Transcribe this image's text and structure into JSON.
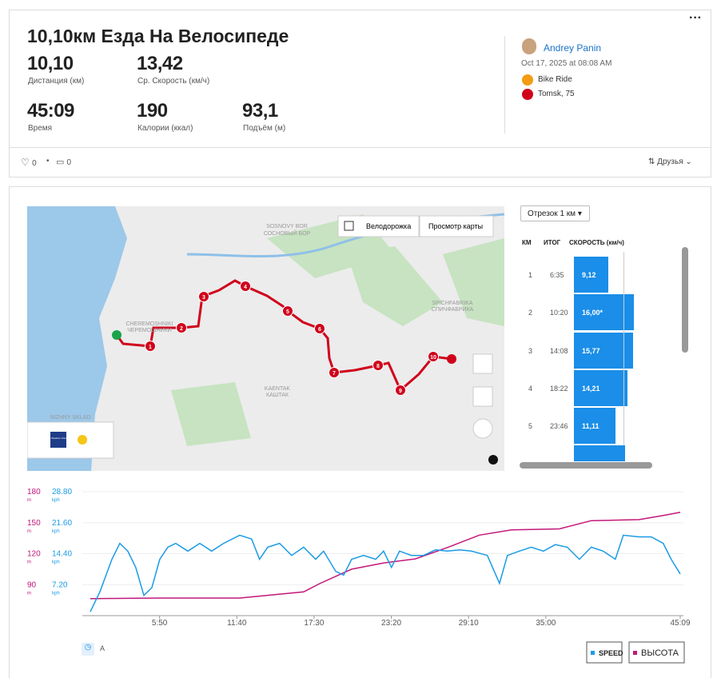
{
  "header": {
    "title": "10,10км Езда На Велосипеде",
    "stats": [
      {
        "value": "10,10",
        "label": "Дистанция (км)"
      },
      {
        "value": "13,42",
        "label": "Ср. Скорость (км/ч)"
      },
      {
        "value": "45:09",
        "label": "Время"
      },
      {
        "value": "190",
        "label": "Калории (ккал)"
      },
      {
        "value": "93,1",
        "label": "Подъём (м)"
      }
    ],
    "author": "Andrey Panin",
    "date": "Oct 17, 2025 at 08:08 AM",
    "activity": "Bike Ride",
    "location": "Tomsk, 75"
  },
  "social": {
    "likes": "0",
    "comments": "0",
    "visibility": "Друзья"
  },
  "map": {
    "bike_lanes": "Велодорожка",
    "map_view": "Просмотр карты",
    "places": [
      "SOSNOVY BOR",
      "СОСНОВЫЙ БОР",
      "CHEREMOSHNIKI",
      "ЧЕРЕМОШНИКИ",
      "SPICHFABRIKA",
      "СПИЧФАБРИКА",
      "KAENTAK",
      "КАШТАК",
      "NIZHNY SKLAD"
    ],
    "markers": [
      "1",
      "2",
      "3",
      "4",
      "5",
      "6",
      "7",
      "8",
      "9",
      "10"
    ],
    "weather": "The Weather Channel"
  },
  "splits": {
    "selector": "Отрезок 1 км",
    "headers": [
      "КМ",
      "ИТОГ",
      "СКОРОСТЬ (км/ч)"
    ],
    "rows": [
      [
        "1",
        "6:35",
        {
          "value": 9.12,
          "label": "9,12"
        }
      ],
      [
        "2",
        "10:20",
        {
          "value": 16.0,
          "label": "16,00*"
        }
      ],
      [
        "3",
        "14:08",
        {
          "value": 15.77,
          "label": "15,77"
        }
      ],
      [
        "4",
        "18:22",
        {
          "value": 14.21,
          "label": "14,21"
        }
      ],
      [
        "5",
        "23:46",
        {
          "value": 11.11,
          "label": "11,11"
        }
      ]
    ]
  },
  "chart_data": {
    "type": "line",
    "y_unit": "kph",
    "y2_unit": "m",
    "xlim": [
      0,
      2709
    ],
    "xticks": [
      {
        "value": 350,
        "label": "5:50"
      },
      {
        "value": 700,
        "label": "11:40"
      },
      {
        "value": 1050,
        "label": "17:30"
      },
      {
        "value": 1400,
        "label": "23:20"
      },
      {
        "value": 1750,
        "label": "29:10"
      },
      {
        "value": 2100,
        "label": "35:00"
      },
      {
        "value": 2709,
        "label": "45:09"
      }
    ],
    "ylim": [
      0,
      28.8
    ],
    "yticks": [
      {
        "value": 7.2,
        "label": "7.20"
      },
      {
        "value": 14.4,
        "label": "14.40"
      },
      {
        "value": 21.6,
        "label": "21.60"
      },
      {
        "value": 28.8,
        "label": "28.80"
      }
    ],
    "y2lim": [
      60,
      180
    ],
    "y2ticks": [
      90,
      120,
      150,
      180
    ],
    "grid": true,
    "series": [
      {
        "name": "SPEED",
        "color": "#1a9be6",
        "x": [
          36,
          80,
          134,
          170,
          206,
          242,
          279,
          315,
          351,
          387,
          423,
          478,
          532,
          586,
          640,
          713,
          767,
          803,
          840,
          894,
          948,
          1003,
          1057,
          1093,
          1148,
          1184,
          1220,
          1274,
          1329,
          1365,
          1401,
          1437,
          1491,
          1546,
          1600,
          1655,
          1709,
          1763,
          1835,
          1890,
          1926,
          1980,
          2034,
          2089,
          2143,
          2197,
          2252,
          2306,
          2360,
          2415,
          2451,
          2523,
          2578,
          2632,
          2668,
          2709
        ],
        "values": [
          0.9,
          5.6,
          13.1,
          16.8,
          15.0,
          11.2,
          4.7,
          6.5,
          13.1,
          15.9,
          16.8,
          15.0,
          16.8,
          15.0,
          16.8,
          18.7,
          17.8,
          13.1,
          15.9,
          16.8,
          14.0,
          15.9,
          13.1,
          15.0,
          10.3,
          9.4,
          13.1,
          14.0,
          13.1,
          15.0,
          11.2,
          15.0,
          14.0,
          14.0,
          15.3,
          15.0,
          15.3,
          15.0,
          14.0,
          7.5,
          14.0,
          15.0,
          15.9,
          15.0,
          16.5,
          15.9,
          13.1,
          15.9,
          15.0,
          13.1,
          18.7,
          18.3,
          18.3,
          16.8,
          13.1,
          9.7
        ]
      },
      {
        "name": "ВЫСОТА",
        "color": "#c2187a",
        "axis": "y2",
        "x": [
          36,
          351,
          713,
          1003,
          1075,
          1220,
          1365,
          1509,
          1654,
          1799,
          1944,
          2161,
          2306,
          2523,
          2632,
          2709
        ],
        "values": [
          76.4,
          77,
          77,
          83,
          91,
          105,
          111,
          115,
          126,
          138,
          143,
          144,
          152,
          153,
          157,
          160
        ]
      }
    ]
  }
}
